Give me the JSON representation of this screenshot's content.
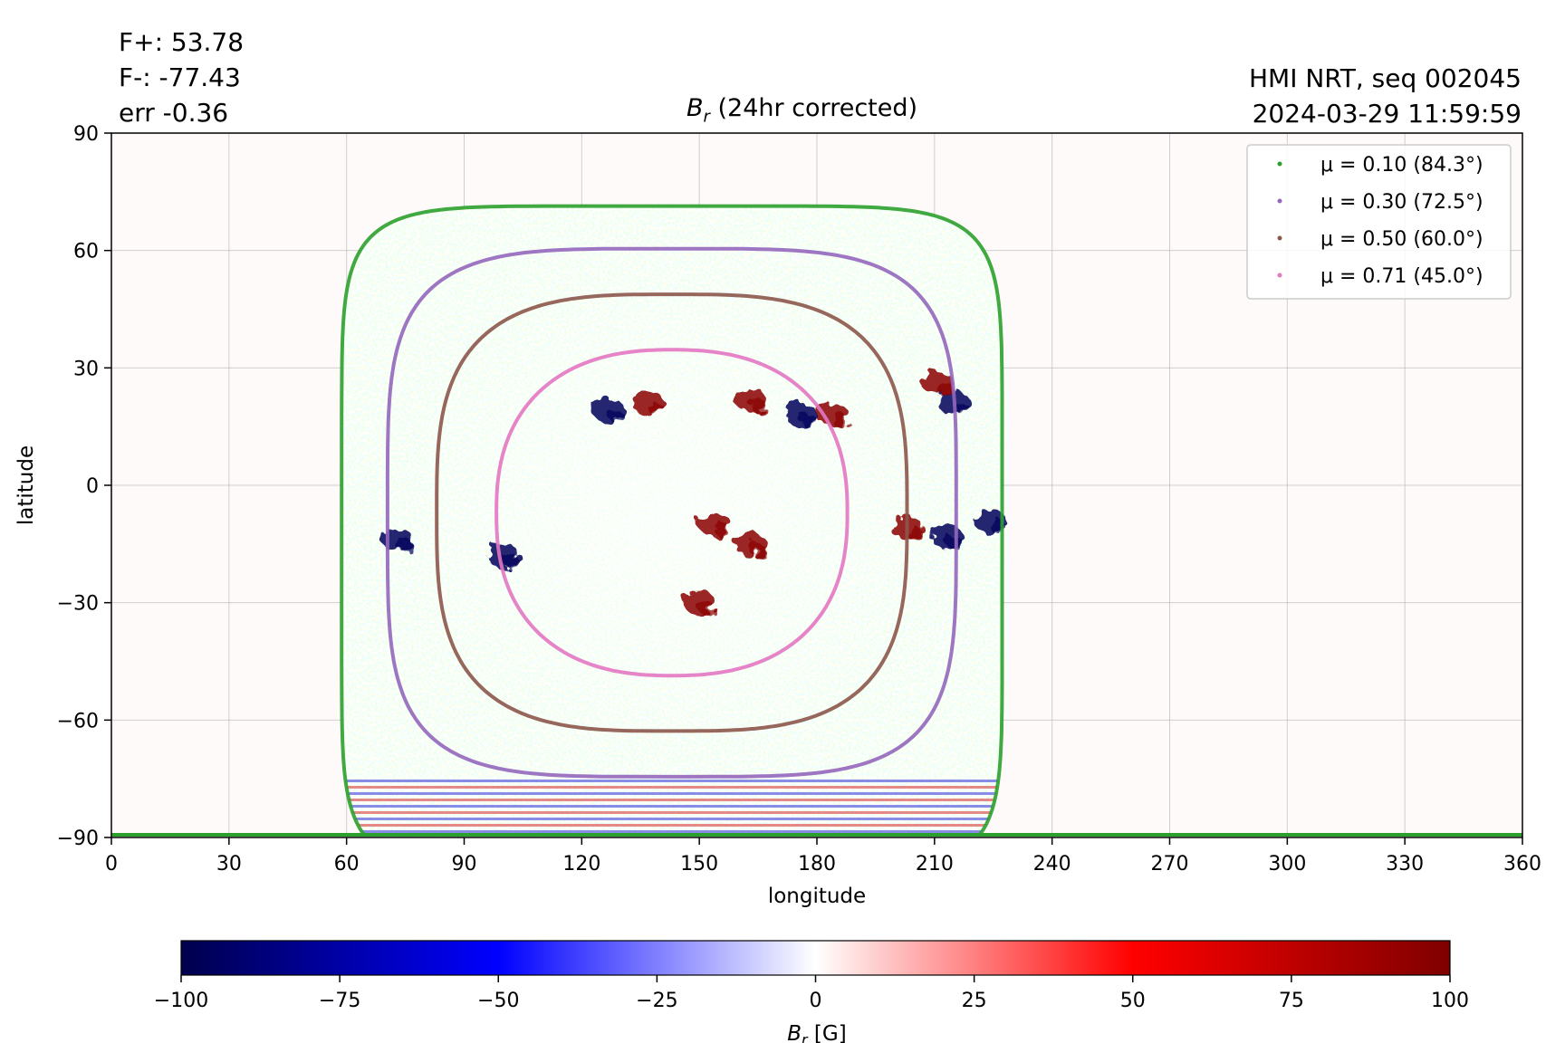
{
  "header": {
    "stats": [
      "F+: 53.78",
      "F-: -77.43",
      "err -0.36"
    ],
    "source": "HMI NRT, seq 002045",
    "timestamp": "2024-03-29 11:59:59",
    "title_symbol": "B",
    "title_sub": "r",
    "title_rest": " (24hr corrected)"
  },
  "chart_data": {
    "type": "heatmap",
    "title": "B_r (24hr corrected)",
    "xlabel": "longitude",
    "ylabel": "latitude",
    "xlim": [
      0,
      360
    ],
    "ylim": [
      -90,
      90
    ],
    "xticks": [
      0,
      30,
      60,
      90,
      120,
      150,
      180,
      210,
      240,
      270,
      300,
      330,
      360
    ],
    "yticks": [
      -90,
      -60,
      -30,
      0,
      30,
      60,
      90
    ],
    "ytick_labels": [
      "−90",
      "−60",
      "−30",
      "0",
      "30",
      "60",
      "90"
    ],
    "grid": true,
    "legend_position": "top-right",
    "disk_center_longitude": 143,
    "disk_center_latitude": -7,
    "series": [
      {
        "name": "μ = 0.10 (84.3°)",
        "mu": 0.1,
        "angle_deg": 84.3,
        "color": "#2ca02c"
      },
      {
        "name": "μ = 0.30 (72.5°)",
        "mu": 0.3,
        "angle_deg": 72.5,
        "color": "#9467bd"
      },
      {
        "name": "μ = 0.50 (60.0°)",
        "mu": 0.5,
        "angle_deg": 60.0,
        "color": "#8c564b"
      },
      {
        "name": "μ = 0.71 (45.0°)",
        "mu": 0.71,
        "angle_deg": 45.0,
        "color": "#e377c2"
      }
    ],
    "active_regions": [
      {
        "lon": 137,
        "lat": 21,
        "polarity": "positive"
      },
      {
        "lon": 127,
        "lat": 19,
        "polarity": "negative"
      },
      {
        "lon": 163,
        "lat": 22,
        "polarity": "positive"
      },
      {
        "lon": 184,
        "lat": 18,
        "polarity": "positive"
      },
      {
        "lon": 176,
        "lat": 18,
        "polarity": "negative"
      },
      {
        "lon": 215,
        "lat": 21,
        "polarity": "negative"
      },
      {
        "lon": 211,
        "lat": 26,
        "polarity": "positive"
      },
      {
        "lon": 203,
        "lat": -11,
        "polarity": "positive"
      },
      {
        "lon": 213,
        "lat": -13,
        "polarity": "negative"
      },
      {
        "lon": 224,
        "lat": -9,
        "polarity": "negative"
      },
      {
        "lon": 73,
        "lat": -14,
        "polarity": "negative"
      },
      {
        "lon": 154,
        "lat": -10,
        "polarity": "positive"
      },
      {
        "lon": 163,
        "lat": -15,
        "polarity": "positive"
      },
      {
        "lon": 150,
        "lat": -30,
        "polarity": "positive"
      },
      {
        "lon": 100,
        "lat": -18,
        "polarity": "negative"
      }
    ],
    "colorbar": {
      "label_symbol": "B",
      "label_sub": "r",
      "label_unit": " [G]",
      "min": -100,
      "max": 100,
      "ticks": [
        -100,
        -75,
        -50,
        -25,
        0,
        25,
        50,
        75,
        100
      ],
      "tick_labels": [
        "−100",
        "−75",
        "−50",
        "−25",
        "0",
        "25",
        "50",
        "75",
        "100"
      ],
      "colormap": "seismic",
      "colors": [
        "#00004c",
        "#0000ff",
        "#ffffff",
        "#ff0000",
        "#7f0000"
      ]
    }
  }
}
